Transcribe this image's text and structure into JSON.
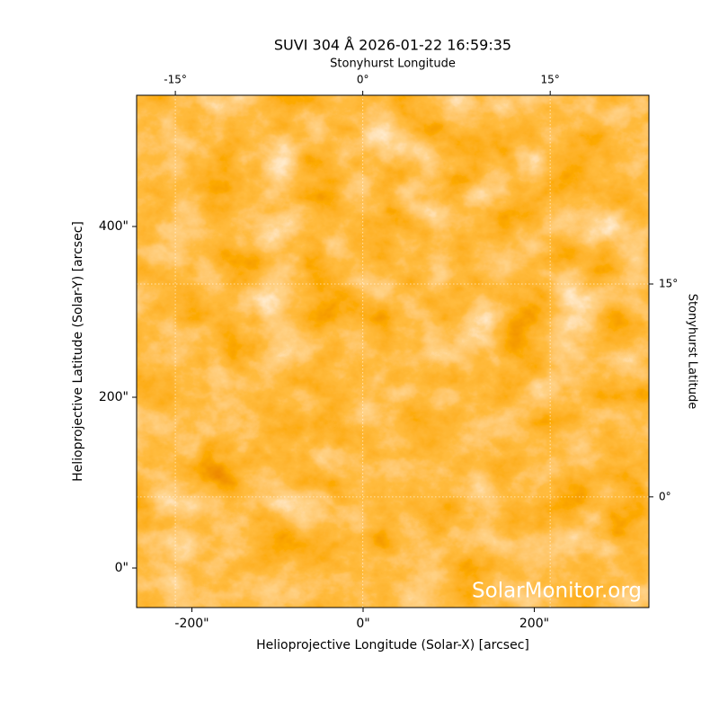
{
  "chart_data": {
    "type": "image",
    "title": "SUVI 304 Å 2026-01-22 16:59:35",
    "xlabel": "Helioprojective Longitude (Solar-X) [arcsec]",
    "ylabel": "Helioprojective Latitude (Solar-Y) [arcsec]",
    "x2label": "Stonyhurst Longitude",
    "y2label": "Stonyhurst Latitude",
    "annotation": "SolarMonitor.org",
    "xlim": [
      -264.6,
      333.9
    ],
    "ylim": [
      -46.3,
      553.7
    ],
    "xticks": [
      {
        "value": -200,
        "label": "-200\""
      },
      {
        "value": 0,
        "label": "0\""
      },
      {
        "value": 200,
        "label": "200\""
      }
    ],
    "yticks": [
      {
        "value": 0,
        "label": "0\""
      },
      {
        "value": 200,
        "label": "200\""
      },
      {
        "value": 400,
        "label": "400\""
      }
    ],
    "x2lim": [
      -18.1,
      22.9
    ],
    "x2ticks": [
      {
        "value": -15,
        "label": "-15°"
      },
      {
        "value": 0,
        "label": "0°"
      },
      {
        "value": 15,
        "label": "15°"
      }
    ],
    "y2lim": [
      -7.8,
      28.3
    ],
    "y2ticks": [
      {
        "value": 0,
        "label": "0°"
      },
      {
        "value": 15,
        "label": "15°"
      }
    ],
    "grid": true
  }
}
